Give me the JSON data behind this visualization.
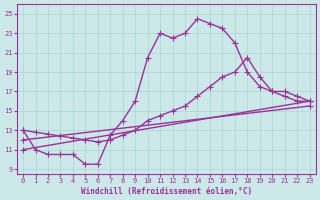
{
  "xlabel": "Windchill (Refroidissement éolien,°C)",
  "bg_color": "#cce8e8",
  "line_color": "#993399",
  "grid_color": "#aad4d4",
  "xlim": [
    -0.5,
    23.5
  ],
  "ylim": [
    8.5,
    26
  ],
  "xticks": [
    0,
    1,
    2,
    3,
    4,
    5,
    6,
    7,
    8,
    9,
    10,
    11,
    12,
    13,
    14,
    15,
    16,
    17,
    18,
    19,
    20,
    21,
    22,
    23
  ],
  "yticks": [
    9,
    11,
    13,
    15,
    17,
    19,
    21,
    23,
    25
  ],
  "line1_x": [
    0,
    1,
    2,
    3,
    4,
    5,
    6,
    7,
    8,
    9,
    10,
    11,
    12,
    13,
    14,
    15,
    16,
    17,
    18,
    19,
    20,
    21,
    22,
    23
  ],
  "line1_y": [
    13,
    11,
    10.5,
    10.5,
    10.5,
    9.5,
    9.5,
    12.5,
    14,
    16,
    20.5,
    23,
    22.5,
    23,
    24.5,
    24,
    23.5,
    22,
    19,
    17.5,
    17,
    17,
    16.5,
    16
  ],
  "line2_x": [
    0,
    1,
    2,
    3,
    4,
    5,
    6,
    7,
    8,
    9,
    10,
    11,
    12,
    13,
    14,
    15,
    16,
    17,
    18,
    19,
    20,
    21,
    22,
    23
  ],
  "line2_y": [
    13,
    12.8,
    12.6,
    12.4,
    12.2,
    12.0,
    11.8,
    12,
    12.5,
    13,
    14,
    14.5,
    15,
    15.5,
    16.5,
    17.5,
    18.5,
    19,
    20.5,
    18.5,
    17,
    16.5,
    16,
    16
  ],
  "line3_x": [
    0,
    23
  ],
  "line3_y": [
    12,
    15.5
  ],
  "line4_x": [
    0,
    23
  ],
  "line4_y": [
    11,
    16
  ],
  "marker": "+",
  "markersize": 4,
  "linewidth": 1.0
}
